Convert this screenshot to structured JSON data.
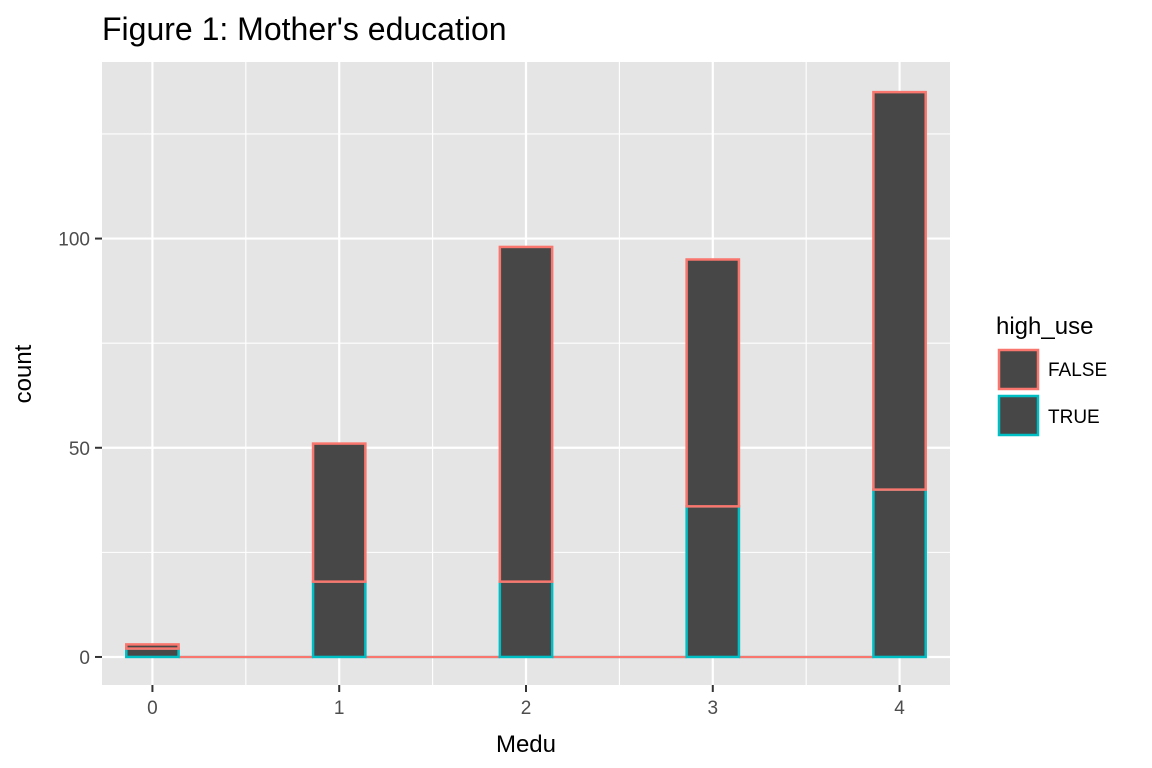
{
  "chart_data": {
    "type": "bar",
    "stacked": true,
    "title": "Figure 1: Mother's education",
    "xlabel": "Medu",
    "ylabel": "count",
    "x": [
      0,
      1,
      2,
      3,
      4
    ],
    "x_ticks": [
      "0",
      "1",
      "2",
      "3",
      "4"
    ],
    "y_ticks": [
      "0",
      "50",
      "100"
    ],
    "xlim": [
      -0.27,
      4.27
    ],
    "ylim": [
      -6.7,
      142.2
    ],
    "grid": true,
    "legend": {
      "title": "high_use",
      "position": "right"
    },
    "series": [
      {
        "name": "FALSE",
        "values": [
          1,
          33,
          80,
          59,
          95
        ],
        "outline_color": "#F8766D"
      },
      {
        "name": "TRUE",
        "values": [
          2,
          18,
          18,
          36,
          40
        ],
        "outline_color": "#00BFC4"
      }
    ],
    "fill_color": "#474747",
    "panel_color": "#e5e5e5"
  }
}
